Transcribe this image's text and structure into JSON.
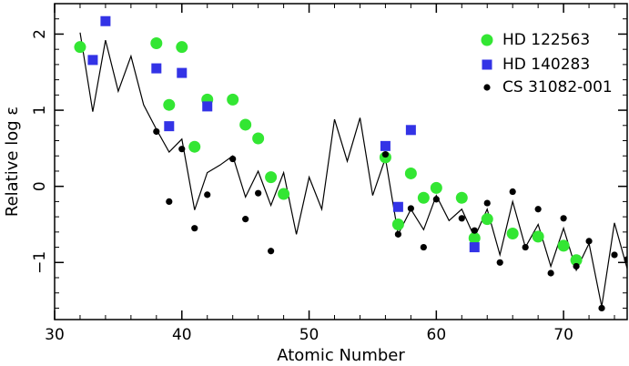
{
  "chart_data": {
    "type": "scatter",
    "title": "",
    "xlabel": "Atomic Number",
    "ylabel": "Relative log ε",
    "xlim": [
      30,
      75
    ],
    "ylim": [
      -1.75,
      2.4
    ],
    "x_ticks": [
      30,
      40,
      50,
      60,
      70
    ],
    "x_tick_labels": [
      "30",
      "40",
      "50",
      "60",
      "70"
    ],
    "y_ticks": [
      2,
      1,
      0,
      -1
    ],
    "y_tick_labels": [
      "2",
      "1",
      "0",
      "−1"
    ],
    "grid": false,
    "legend_position": "top-right",
    "series": [
      {
        "name": "HD 122563",
        "marker": "circle",
        "color": "#33e633",
        "points": [
          [
            32,
            1.83
          ],
          [
            38,
            1.88
          ],
          [
            39,
            1.07
          ],
          [
            40,
            1.83
          ],
          [
            41,
            0.52
          ],
          [
            42,
            1.14
          ],
          [
            44,
            1.14
          ],
          [
            45,
            0.81
          ],
          [
            46,
            0.63
          ],
          [
            47,
            0.12
          ],
          [
            48,
            -0.1
          ],
          [
            56,
            0.38
          ],
          [
            57,
            -0.5
          ],
          [
            58,
            0.17
          ],
          [
            59,
            -0.15
          ],
          [
            60,
            -0.02
          ],
          [
            62,
            -0.15
          ],
          [
            63,
            -0.68
          ],
          [
            64,
            -0.43
          ],
          [
            66,
            -0.62
          ],
          [
            68,
            -0.66
          ],
          [
            70,
            -0.78
          ],
          [
            71,
            -0.97
          ]
        ]
      },
      {
        "name": "HD 140283",
        "marker": "square",
        "color": "#3333e6",
        "points": [
          [
            33,
            1.66
          ],
          [
            34,
            2.17
          ],
          [
            38,
            1.55
          ],
          [
            39,
            0.79
          ],
          [
            40,
            1.49
          ],
          [
            42,
            1.05
          ],
          [
            56,
            0.53
          ],
          [
            57,
            -0.27
          ],
          [
            58,
            0.74
          ],
          [
            63,
            -0.8
          ]
        ]
      },
      {
        "name": "CS 31082-001",
        "marker": "dot",
        "color": "#000000",
        "points": [
          [
            38,
            0.72
          ],
          [
            39,
            -0.2
          ],
          [
            40,
            0.49
          ],
          [
            41,
            -0.55
          ],
          [
            42,
            -0.11
          ],
          [
            44,
            0.36
          ],
          [
            45,
            -0.43
          ],
          [
            46,
            -0.09
          ],
          [
            47,
            -0.85
          ],
          [
            56,
            0.42
          ],
          [
            57,
            -0.63
          ],
          [
            58,
            -0.29
          ],
          [
            59,
            -0.8
          ],
          [
            60,
            -0.17
          ],
          [
            62,
            -0.42
          ],
          [
            63,
            -0.58
          ],
          [
            64,
            -0.22
          ],
          [
            65,
            -1.0
          ],
          [
            66,
            -0.07
          ],
          [
            67,
            -0.8
          ],
          [
            68,
            -0.3
          ],
          [
            69,
            -1.14
          ],
          [
            70,
            -0.42
          ],
          [
            71,
            -1.05
          ],
          [
            72,
            -0.72
          ],
          [
            73,
            -1.6
          ],
          [
            74,
            -0.9
          ],
          [
            75,
            -0.96
          ]
        ]
      },
      {
        "name": "",
        "marker": "line",
        "color": "#000000",
        "points": [
          [
            32,
            2.02
          ],
          [
            33,
            0.98
          ],
          [
            34,
            1.92
          ],
          [
            35,
            1.25
          ],
          [
            36,
            1.71
          ],
          [
            37,
            1.07
          ],
          [
            38,
            0.75
          ],
          [
            39,
            0.45
          ],
          [
            40,
            0.62
          ],
          [
            41,
            -0.31
          ],
          [
            42,
            0.18
          ],
          [
            43,
            0.28
          ],
          [
            44,
            0.4
          ],
          [
            45,
            -0.14
          ],
          [
            46,
            0.2
          ],
          [
            47,
            -0.25
          ],
          [
            48,
            0.18
          ],
          [
            49,
            -0.63
          ],
          [
            50,
            0.12
          ],
          [
            51,
            -0.3
          ],
          [
            52,
            0.88
          ],
          [
            53,
            0.33
          ],
          [
            54,
            0.9
          ],
          [
            55,
            -0.12
          ],
          [
            56,
            0.37
          ],
          [
            57,
            -0.63
          ],
          [
            58,
            -0.3
          ],
          [
            59,
            -0.57
          ],
          [
            60,
            -0.12
          ],
          [
            61,
            -0.45
          ],
          [
            62,
            -0.3
          ],
          [
            63,
            -0.67
          ],
          [
            64,
            -0.3
          ],
          [
            65,
            -0.9
          ],
          [
            66,
            -0.2
          ],
          [
            67,
            -0.8
          ],
          [
            68,
            -0.5
          ],
          [
            69,
            -1.05
          ],
          [
            70,
            -0.55
          ],
          [
            71,
            -1.1
          ],
          [
            72,
            -0.75
          ],
          [
            73,
            -1.58
          ],
          [
            74,
            -0.48
          ],
          [
            75,
            -1.08
          ]
        ]
      }
    ]
  }
}
